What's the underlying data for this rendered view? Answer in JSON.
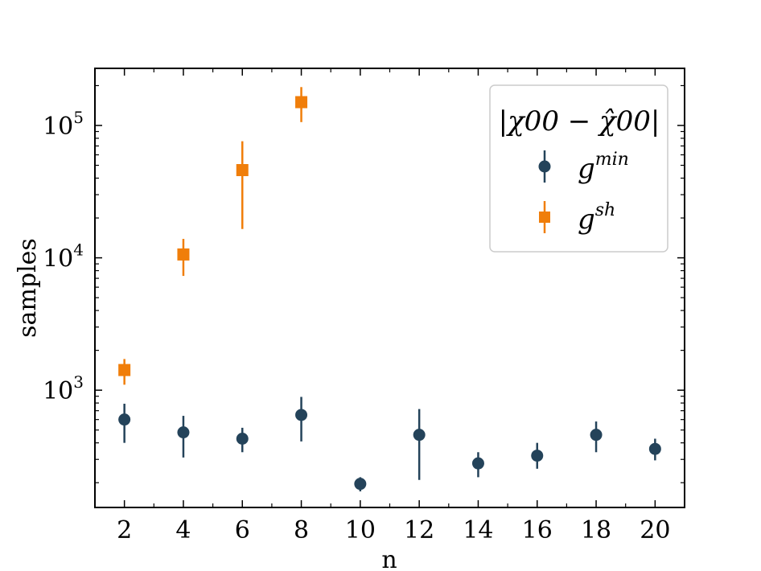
{
  "chart_data": {
    "type": "scatter",
    "title": "",
    "xlabel": "n",
    "ylabel": "samples",
    "yscale": "log",
    "xlim": [
      1,
      21
    ],
    "ylim": [
      130,
      270000
    ],
    "xticks": [
      2,
      4,
      6,
      8,
      10,
      12,
      14,
      16,
      18,
      20
    ],
    "xtick_labels": [
      "2",
      "4",
      "6",
      "8",
      "10",
      "12",
      "14",
      "16",
      "18",
      "20"
    ],
    "yticks": [
      1000,
      10000,
      100000
    ],
    "ytick_labels": [
      {
        "base": "10",
        "exp": "3"
      },
      {
        "base": "10",
        "exp": "4"
      },
      {
        "base": "10",
        "exp": "5"
      }
    ],
    "legend": {
      "title": "|χ00 − χ̂00|",
      "placement": "top-right"
    },
    "series": [
      {
        "name": "g",
        "name_sup": "min",
        "marker": "circle",
        "color": "#24435a",
        "points": [
          {
            "x": 2,
            "y": 600,
            "ylo": 400,
            "yhi": 790
          },
          {
            "x": 4,
            "y": 480,
            "ylo": 310,
            "yhi": 640
          },
          {
            "x": 6,
            "y": 430,
            "ylo": 340,
            "yhi": 520
          },
          {
            "x": 8,
            "y": 650,
            "ylo": 410,
            "yhi": 890
          },
          {
            "x": 10,
            "y": 196,
            "ylo": 172,
            "yhi": 220
          },
          {
            "x": 12,
            "y": 460,
            "ylo": 210,
            "yhi": 720
          },
          {
            "x": 14,
            "y": 280,
            "ylo": 220,
            "yhi": 340
          },
          {
            "x": 16,
            "y": 320,
            "ylo": 255,
            "yhi": 400
          },
          {
            "x": 18,
            "y": 460,
            "ylo": 340,
            "yhi": 580
          },
          {
            "x": 20,
            "y": 360,
            "ylo": 295,
            "yhi": 430
          }
        ]
      },
      {
        "name": "g",
        "name_sup": "sh",
        "marker": "square",
        "color": "#f07e0a",
        "points": [
          {
            "x": 2,
            "y": 1420,
            "ylo": 1100,
            "yhi": 1720
          },
          {
            "x": 4,
            "y": 10600,
            "ylo": 7300,
            "yhi": 13900
          },
          {
            "x": 6,
            "y": 46000,
            "ylo": 16500,
            "yhi": 76000
          },
          {
            "x": 8,
            "y": 150000,
            "ylo": 106000,
            "yhi": 195000
          }
        ]
      }
    ]
  }
}
